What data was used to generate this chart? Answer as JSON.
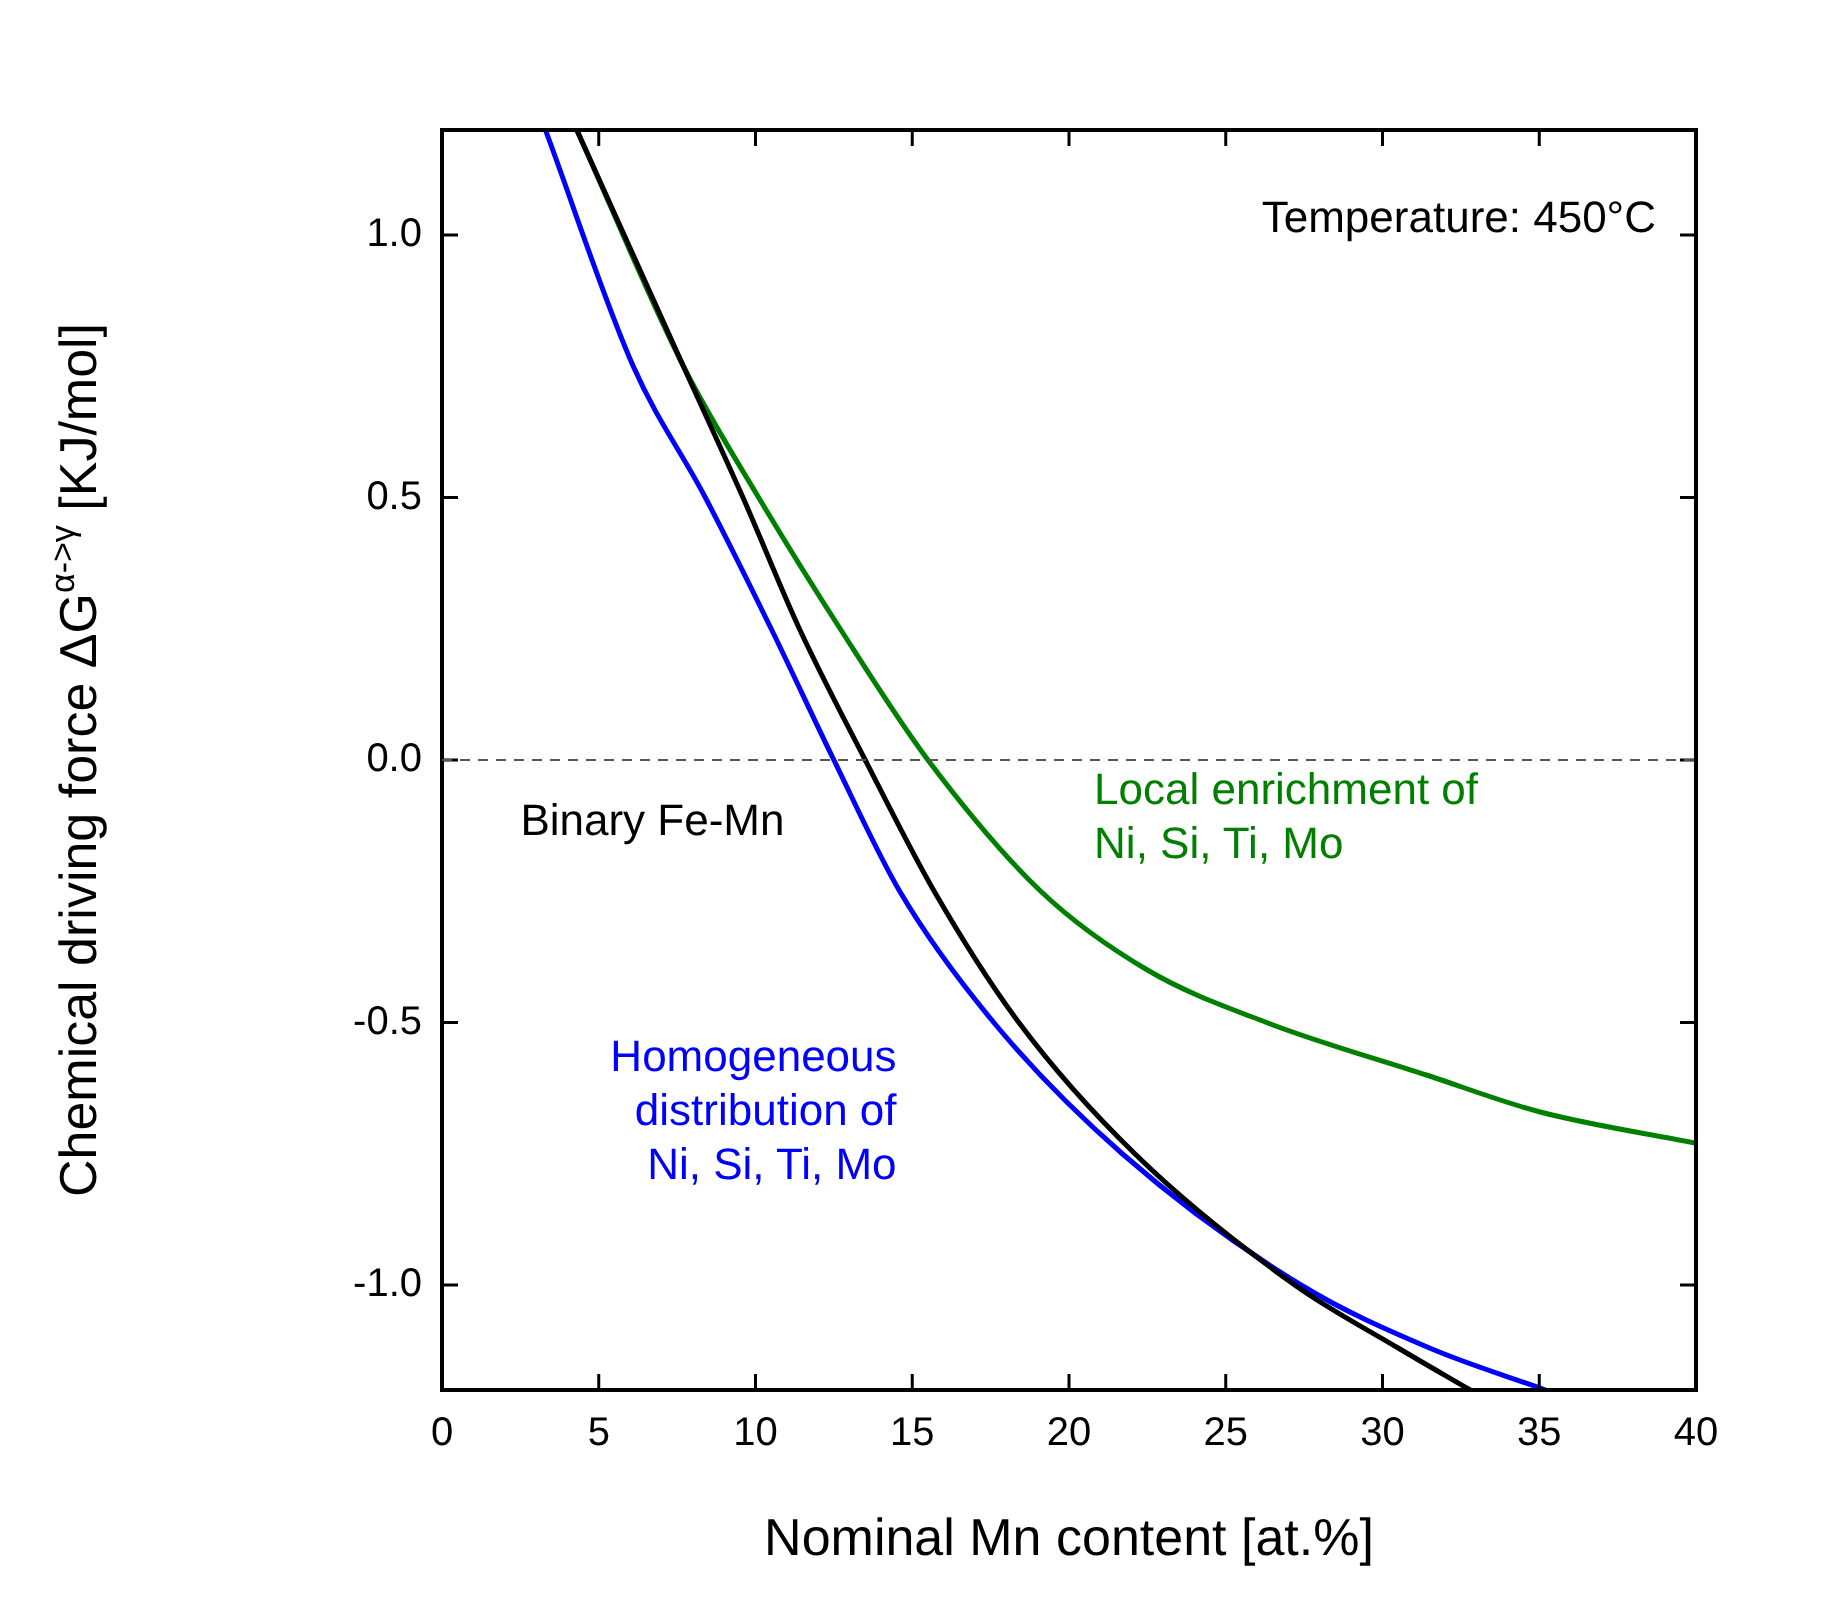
{
  "chart_data": {
    "type": "line",
    "xlabel": "Nominal Mn content [at.%]",
    "ylabel": "Chemical driving force ΔG$^{α->γ}$ [KJ/mol]",
    "xlim": [
      0,
      40
    ],
    "ylim": [
      -1.2,
      1.2
    ],
    "xticks": [
      0,
      5,
      10,
      15,
      20,
      25,
      30,
      35,
      40
    ],
    "yticks": [
      {
        "value": -1,
        "label": "-1.0"
      },
      -0.5,
      {
        "value": 0,
        "label": "0.0"
      },
      0.5,
      {
        "value": 1,
        "label": "1.0"
      }
    ],
    "grid": false,
    "legend": false,
    "marker": "none",
    "line_style": "solid",
    "series": [
      {
        "name": "Binary Fe-Mn",
        "color": "#000000",
        "x": [
          4.3,
          7.7,
          9.6,
          11.4,
          13.5,
          15.7,
          18.4,
          22.1,
          27.2,
          30.5,
          32.8
        ],
        "values": [
          1.2,
          0.75,
          0.5,
          0.25,
          0.0,
          -0.25,
          -0.5,
          -0.75,
          -1.0,
          -1.12,
          -1.2
        ]
      },
      {
        "name": "Homogeneous distribution of Ni, Si, Ti, Mo",
        "color": "#0000ff",
        "x": [
          3.3,
          6.1,
          8.4,
          10.5,
          12.5,
          14.6,
          17.6,
          21.7,
          27.4,
          31.5,
          35.2
        ],
        "values": [
          1.2,
          0.75,
          0.5,
          0.25,
          0.0,
          -0.25,
          -0.5,
          -0.75,
          -1.0,
          -1.12,
          -1.2
        ]
      },
      {
        "name": "Local enrichment of Ni, Si, Ti, Mo",
        "color": "#007f00",
        "x": [
          4.3,
          7.7,
          10.1,
          12.7,
          15.5,
          19.1,
          22.5,
          26.3,
          31.4,
          35,
          40
        ],
        "values": [
          1.2,
          0.75,
          0.5,
          0.25,
          0.0,
          -0.25,
          -0.4,
          -0.5,
          -0.6,
          -0.67,
          -0.73
        ]
      }
    ],
    "ref_lines": [
      {
        "axis": "y",
        "value": 0,
        "color": "#555555",
        "line_style": "dashed"
      }
    ],
    "annotations": [
      "Temperature: 450°C"
    ]
  }
}
